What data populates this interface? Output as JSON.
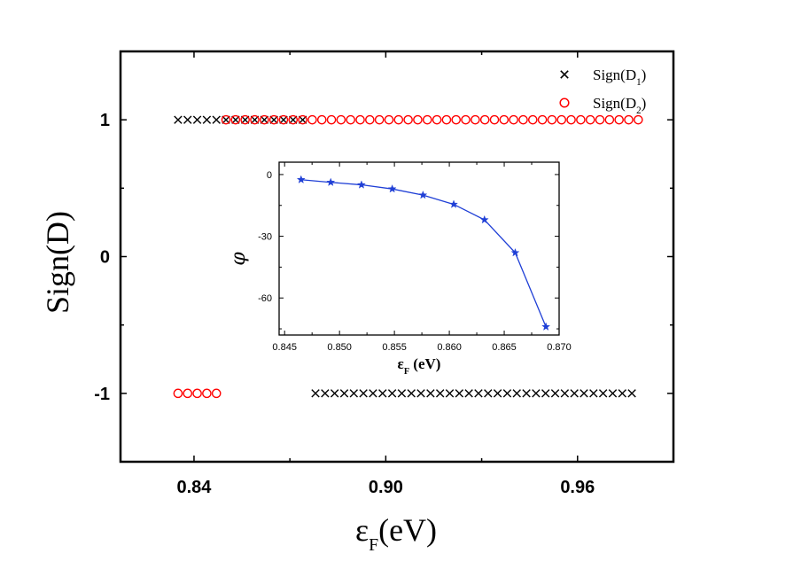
{
  "chart_data": [
    {
      "type": "scatter",
      "xlabel": "ε",
      "xlabel_sub": "F",
      "xlabel_unit": "(eV)",
      "ylabel": "Sign(D)",
      "xlim": [
        0.817,
        0.99
      ],
      "ylim": [
        -1.5,
        1.5
      ],
      "xticks": [
        0.84,
        0.9,
        0.96
      ],
      "xtick_labels": [
        "0.84",
        "0.90",
        "0.96"
      ],
      "yticks": [
        -1,
        0,
        1
      ],
      "ytick_labels": [
        "-1",
        "0",
        "1"
      ],
      "grid": false,
      "legend_position": "top-right",
      "series": [
        {
          "name": "Sign(D",
          "name_sub": "1",
          "name_end": ")",
          "marker": "x",
          "color": "#000000",
          "points": [
            [
              0.835,
              1
            ],
            [
              0.838,
              1
            ],
            [
              0.841,
              1
            ],
            [
              0.844,
              1
            ],
            [
              0.847,
              1
            ],
            [
              0.85,
              1
            ],
            [
              0.853,
              1
            ],
            [
              0.856,
              1
            ],
            [
              0.859,
              1
            ],
            [
              0.862,
              1
            ],
            [
              0.865,
              1
            ],
            [
              0.868,
              1
            ],
            [
              0.871,
              1
            ],
            [
              0.874,
              1
            ],
            [
              0.878,
              -1
            ],
            [
              0.881,
              -1
            ],
            [
              0.884,
              -1
            ],
            [
              0.887,
              -1
            ],
            [
              0.89,
              -1
            ],
            [
              0.893,
              -1
            ],
            [
              0.896,
              -1
            ],
            [
              0.899,
              -1
            ],
            [
              0.902,
              -1
            ],
            [
              0.905,
              -1
            ],
            [
              0.908,
              -1
            ],
            [
              0.911,
              -1
            ],
            [
              0.914,
              -1
            ],
            [
              0.917,
              -1
            ],
            [
              0.92,
              -1
            ],
            [
              0.923,
              -1
            ],
            [
              0.926,
              -1
            ],
            [
              0.929,
              -1
            ],
            [
              0.932,
              -1
            ],
            [
              0.935,
              -1
            ],
            [
              0.938,
              -1
            ],
            [
              0.941,
              -1
            ],
            [
              0.944,
              -1
            ],
            [
              0.947,
              -1
            ],
            [
              0.95,
              -1
            ],
            [
              0.953,
              -1
            ],
            [
              0.956,
              -1
            ],
            [
              0.959,
              -1
            ],
            [
              0.962,
              -1
            ],
            [
              0.965,
              -1
            ],
            [
              0.968,
              -1
            ],
            [
              0.971,
              -1
            ],
            [
              0.974,
              -1
            ],
            [
              0.977,
              -1
            ]
          ]
        },
        {
          "name": "Sign(D",
          "name_sub": "2",
          "name_end": ")",
          "marker": "o",
          "color": "#ff0000",
          "points": [
            [
              0.835,
              -1
            ],
            [
              0.838,
              -1
            ],
            [
              0.841,
              -1
            ],
            [
              0.844,
              -1
            ],
            [
              0.847,
              -1
            ],
            [
              0.85,
              1
            ],
            [
              0.853,
              1
            ],
            [
              0.856,
              1
            ],
            [
              0.859,
              1
            ],
            [
              0.862,
              1
            ],
            [
              0.865,
              1
            ],
            [
              0.868,
              1
            ],
            [
              0.871,
              1
            ],
            [
              0.874,
              1
            ],
            [
              0.877,
              1
            ],
            [
              0.88,
              1
            ],
            [
              0.883,
              1
            ],
            [
              0.886,
              1
            ],
            [
              0.889,
              1
            ],
            [
              0.892,
              1
            ],
            [
              0.895,
              1
            ],
            [
              0.898,
              1
            ],
            [
              0.901,
              1
            ],
            [
              0.904,
              1
            ],
            [
              0.907,
              1
            ],
            [
              0.91,
              1
            ],
            [
              0.913,
              1
            ],
            [
              0.916,
              1
            ],
            [
              0.919,
              1
            ],
            [
              0.922,
              1
            ],
            [
              0.925,
              1
            ],
            [
              0.928,
              1
            ],
            [
              0.931,
              1
            ],
            [
              0.934,
              1
            ],
            [
              0.937,
              1
            ],
            [
              0.94,
              1
            ],
            [
              0.943,
              1
            ],
            [
              0.946,
              1
            ],
            [
              0.949,
              1
            ],
            [
              0.952,
              1
            ],
            [
              0.955,
              1
            ],
            [
              0.958,
              1
            ],
            [
              0.961,
              1
            ],
            [
              0.964,
              1
            ],
            [
              0.967,
              1
            ],
            [
              0.97,
              1
            ],
            [
              0.973,
              1
            ],
            [
              0.976,
              1
            ],
            [
              0.979,
              1
            ]
          ]
        }
      ]
    },
    {
      "type": "line",
      "xlabel": "ε",
      "xlabel_sub": "F",
      "xlabel_unit": "(eV)",
      "ylabel": "φ",
      "xlim": [
        0.8445,
        0.87
      ],
      "ylim": [
        -78,
        6
      ],
      "xticks": [
        0.845,
        0.85,
        0.855,
        0.86,
        0.865,
        0.87
      ],
      "xtick_labels": [
        "0.845",
        "0.850",
        "0.855",
        "0.860",
        "0.865",
        "0.870"
      ],
      "yticks": [
        0,
        -30,
        -60
      ],
      "ytick_labels": [
        "0",
        "-30",
        "-60"
      ],
      "grid": false,
      "series": [
        {
          "marker": "star",
          "color": "#1f3fd6",
          "x": [
            0.8465,
            0.8492,
            0.852,
            0.8548,
            0.8576,
            0.8604,
            0.8632,
            0.866,
            0.8688
          ],
          "y": [
            -2.5,
            -3.8,
            -5.0,
            -7.0,
            -10.0,
            -14.5,
            -22.0,
            -38.0,
            -74.0
          ]
        }
      ]
    }
  ]
}
